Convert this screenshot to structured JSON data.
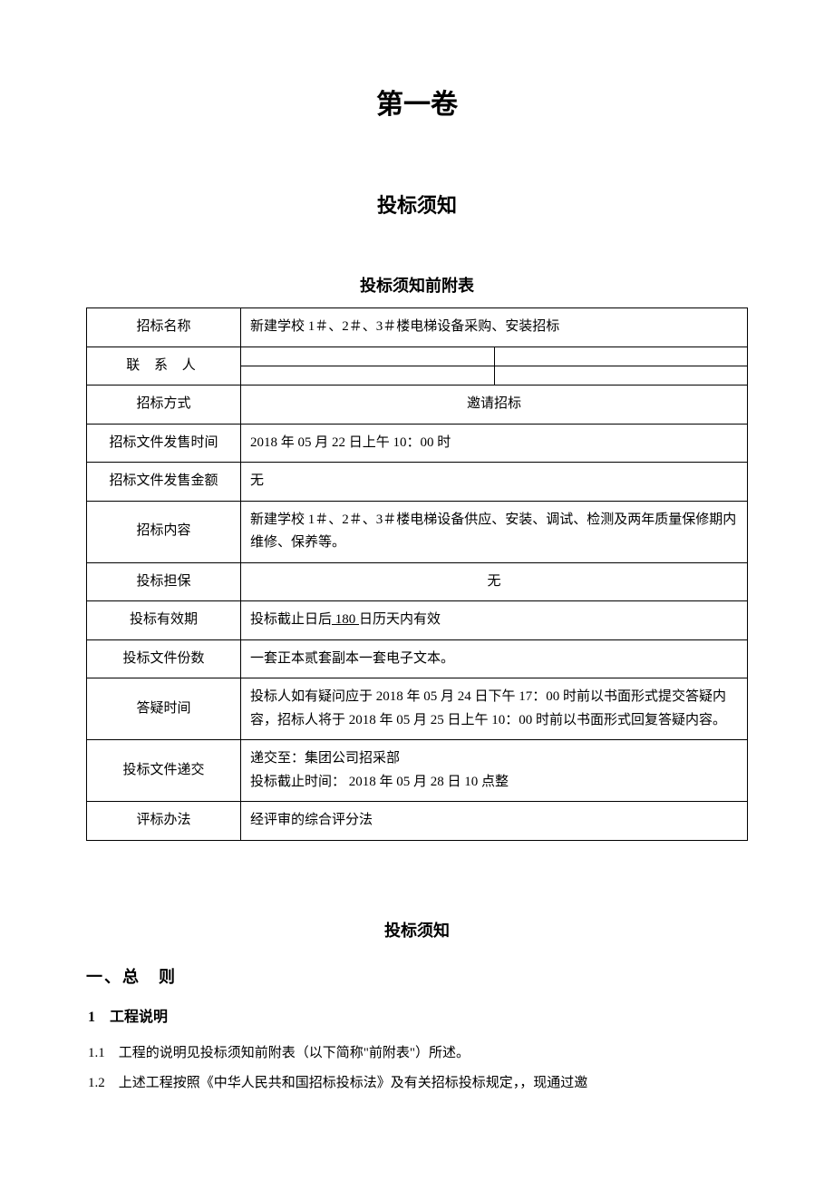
{
  "volume_title": "第一卷",
  "notice_title": "投标须知",
  "appendix_title": "投标须知前附表",
  "table": {
    "tender_name_label": "招标名称",
    "tender_name_value": "新建学校 1＃、2＃、3＃楼电梯设备采购、安装招标",
    "contact_label": "联 系 人",
    "method_label": "招标方式",
    "method_value": "邀请招标",
    "doc_sale_time_label": "招标文件发售时间",
    "doc_sale_time_value": "2018 年 05 月 22 日上午 10：00 时",
    "doc_sale_amount_label": "招标文件发售金额",
    "doc_sale_amount_value": "无",
    "content_label": "招标内容",
    "content_value": "新建学校 1＃、2＃、3＃楼电梯设备供应、安装、调试、检测及两年质量保修期内维修、保养等。",
    "guarantee_label": "投标担保",
    "guarantee_value": "无",
    "validity_label": "投标有效期",
    "validity_prefix": "投标截止日后",
    "validity_days": " 180 ",
    "validity_suffix": "日历天内有效",
    "copies_label": "投标文件份数",
    "copies_value": "一套正本贰套副本一套电子文本。",
    "qa_label": "答疑时间",
    "qa_value": "投标人如有疑问应于 2018 年 05 月 24 日下午 17：00 时前以书面形式提交答疑内容，招标人将于 2018 年 05 月 25 日上午 10：00 时前以书面形式回复答疑内容。",
    "submit_label": "投标文件递交",
    "submit_line1": "递交至：集团公司招采部",
    "submit_line2": "投标截止时间：  2018 年 05 月 28 日 10 点整",
    "eval_label": "评标办法",
    "eval_value": "经评审的综合评分法"
  },
  "notice_title_2": "投标须知",
  "section1_heading": "一、总　则",
  "subsection1_heading": "1　工程说明",
  "item_1_1": "1.1　工程的说明见投标须知前附表（以下简称\"前附表\"）所述。",
  "item_1_2": "1.2　上述工程按照《中华人民共和国招标投标法》及有关招标投标规定，，现通过邀"
}
